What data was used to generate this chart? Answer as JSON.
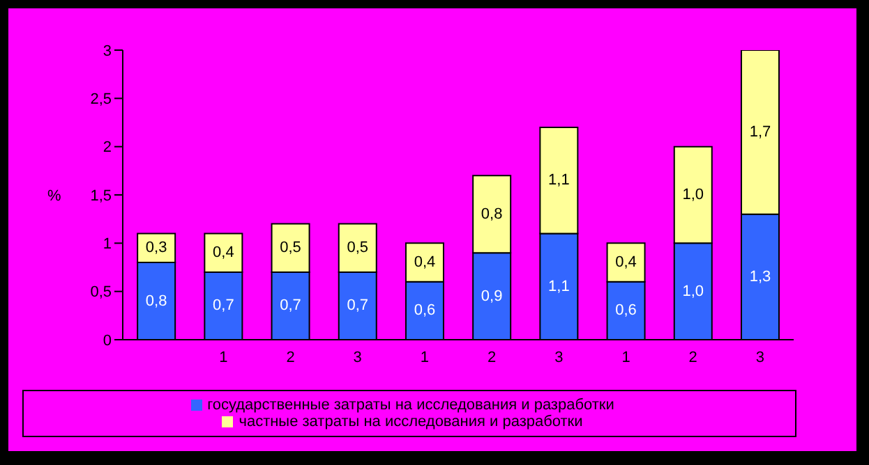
{
  "chart_data": {
    "type": "bar",
    "stacked": true,
    "ylabel": "%",
    "categories": [
      null,
      "1",
      "2",
      "3",
      "1",
      "2",
      "3",
      "1",
      "2",
      "3"
    ],
    "series": [
      {
        "name": "государственные затраты на исследования и разработки",
        "color": "#3366ff",
        "values": [
          0.8,
          0.7,
          0.7,
          0.7,
          0.6,
          0.9,
          1.1,
          0.6,
          1.0,
          1.3
        ],
        "value_labels": [
          "0,8",
          "0,7",
          "0,7",
          "0,7",
          "0,6",
          "0,9",
          "1,1",
          "0,6",
          "1,0",
          "1,3"
        ]
      },
      {
        "name": "частные затраты на исследования и разработки",
        "color": "#ffff99",
        "values": [
          0.3,
          0.4,
          0.5,
          0.5,
          0.4,
          0.8,
          1.1,
          0.4,
          1.0,
          1.7
        ],
        "value_labels": [
          "0,3",
          "0,4",
          "0,5",
          "0,5",
          "0,4",
          "0,8",
          "1,1",
          "0,4",
          "1,0",
          "1,7"
        ]
      }
    ],
    "ylim": [
      0,
      3
    ],
    "yticks": [
      0,
      {
        "value": 0.5,
        "label": "0,5"
      },
      1,
      {
        "value": 1.5,
        "label": "1,5"
      },
      2,
      {
        "value": 2.5,
        "label": "2,5"
      },
      3
    ],
    "grid": false,
    "legend": "bottom"
  }
}
